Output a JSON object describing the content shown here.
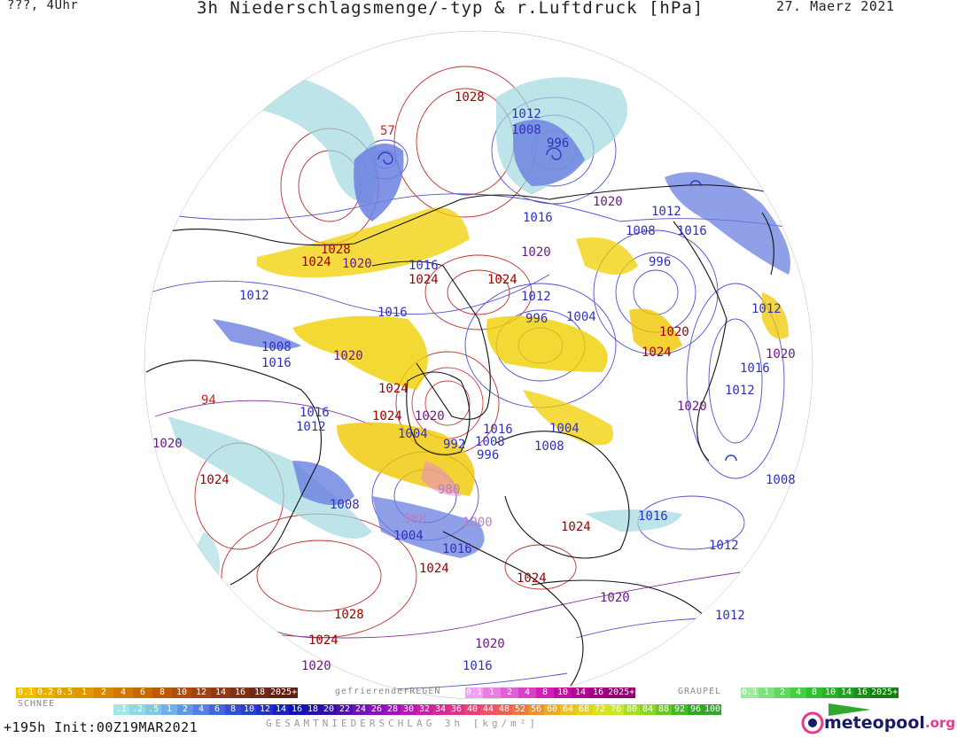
{
  "header": {
    "left": "???, 4Uhr",
    "title": "3h Niederschlagsmenge/-typ & r.Luftdruck [hPa]",
    "date": "27. Maerz 2021"
  },
  "pressure_labels": [
    {
      "text": "1028",
      "kind": "high"
    },
    {
      "text": "1012",
      "kind": "low"
    },
    {
      "text": "1008",
      "kind": "low"
    },
    {
      "text": "996",
      "kind": "low"
    },
    {
      "text": "1020",
      "kind": "mid"
    },
    {
      "text": "1016",
      "kind": "low"
    },
    {
      "text": "1012",
      "kind": "low"
    },
    {
      "text": "1008",
      "kind": "low"
    },
    {
      "text": "1016",
      "kind": "low"
    },
    {
      "text": "1028",
      "kind": "high"
    },
    {
      "text": "1024",
      "kind": "high"
    },
    {
      "text": "1020",
      "kind": "mid"
    },
    {
      "text": "1016",
      "kind": "low"
    },
    {
      "text": "1024",
      "kind": "high"
    },
    {
      "text": "1024",
      "kind": "high"
    },
    {
      "text": "1020",
      "kind": "mid"
    },
    {
      "text": "1012",
      "kind": "low"
    },
    {
      "text": "996",
      "kind": "low"
    },
    {
      "text": "1012",
      "kind": "low"
    },
    {
      "text": "1016",
      "kind": "low"
    },
    {
      "text": "1008",
      "kind": "low"
    },
    {
      "text": "1016",
      "kind": "low"
    },
    {
      "text": "1020",
      "kind": "mid"
    },
    {
      "text": "1024",
      "kind": "high"
    },
    {
      "text": "996",
      "kind": "low"
    },
    {
      "text": "1004",
      "kind": "low"
    },
    {
      "text": "1020",
      "kind": "high"
    },
    {
      "text": "1024",
      "kind": "high"
    },
    {
      "text": "1012",
      "kind": "low"
    },
    {
      "text": "1020",
      "kind": "mid"
    },
    {
      "text": "1016",
      "kind": "low"
    },
    {
      "text": "1012",
      "kind": "low"
    },
    {
      "text": "1020",
      "kind": "mid"
    },
    {
      "text": "1024",
      "kind": "high"
    },
    {
      "text": "1020",
      "kind": "mid"
    },
    {
      "text": "1016",
      "kind": "low"
    },
    {
      "text": "1012",
      "kind": "low"
    },
    {
      "text": "1004",
      "kind": "low"
    },
    {
      "text": "992",
      "kind": "low"
    },
    {
      "text": "1008",
      "kind": "low"
    },
    {
      "text": "996",
      "kind": "low"
    },
    {
      "text": "1016",
      "kind": "low"
    },
    {
      "text": "1008",
      "kind": "low"
    },
    {
      "text": "1004",
      "kind": "low"
    },
    {
      "text": "1020",
      "kind": "mid"
    },
    {
      "text": "1024",
      "kind": "high"
    },
    {
      "text": "1008",
      "kind": "low"
    },
    {
      "text": "980",
      "kind": "pale"
    },
    {
      "text": "988",
      "kind": "pale"
    },
    {
      "text": "1000",
      "kind": "pale"
    },
    {
      "text": "1004",
      "kind": "low"
    },
    {
      "text": "1016",
      "kind": "low"
    },
    {
      "text": "1024",
      "kind": "high"
    },
    {
      "text": "1016",
      "kind": "low"
    },
    {
      "text": "1024",
      "kind": "high"
    },
    {
      "text": "1012",
      "kind": "low"
    },
    {
      "text": "1008",
      "kind": "low"
    },
    {
      "text": "1024",
      "kind": "high"
    },
    {
      "text": "1020",
      "kind": "mid"
    },
    {
      "text": "1012",
      "kind": "low"
    },
    {
      "text": "1028",
      "kind": "high"
    },
    {
      "text": "1024",
      "kind": "high"
    },
    {
      "text": "1020",
      "kind": "mid"
    },
    {
      "text": "1020",
      "kind": "mid"
    },
    {
      "text": "1016",
      "kind": "low"
    }
  ],
  "small_marks": [
    "57",
    "94"
  ],
  "legend": {
    "snow": {
      "label": "SCHNEE",
      "items": [
        "0.1",
        "0.2",
        "0.5",
        "1",
        "2",
        "4",
        "6",
        "8",
        "10",
        "12",
        "14",
        "16",
        "18",
        "2025+"
      ],
      "colors": [
        "#f0c000",
        "#e8b000",
        "#e0a000",
        "#e09800",
        "#d88800",
        "#d07800",
        "#c86800",
        "#c05800",
        "#b04e10",
        "#a04418",
        "#903a18",
        "#803018",
        "#702818",
        "#602010"
      ]
    },
    "freezing_rain": {
      "label": "gefrierenderREGEN",
      "items": [
        "0.1",
        "1",
        "2",
        "4",
        "8",
        "10",
        "14",
        "16",
        "2025+"
      ],
      "colors": [
        "#f0a0f0",
        "#e880e0",
        "#e060d8",
        "#d840c8",
        "#d020b8",
        "#c010a0",
        "#b00890",
        "#a00480",
        "#900070"
      ]
    },
    "graupel": {
      "label": "GRAUPEL",
      "items": [
        "0.1",
        "1",
        "2",
        "4",
        "8",
        "10",
        "14",
        "16",
        "2025+"
      ],
      "colors": [
        "#a0e8a0",
        "#80e080",
        "#60d860",
        "#40d040",
        "#30c030",
        "#28b028",
        "#20a020",
        "#189018",
        "#108010"
      ]
    },
    "total": {
      "items": [
        ".1",
        ".2",
        ".5",
        "1",
        "2",
        "4",
        "6",
        "8",
        "10",
        "12",
        "14",
        "16",
        "18",
        "20",
        "22",
        "24",
        "26",
        "28",
        "30",
        "32",
        "34",
        "36",
        "40",
        "44",
        "48",
        "52",
        "56",
        "60",
        "64",
        "68",
        "72",
        "76",
        "80",
        "84",
        "88",
        "92",
        "96",
        "100"
      ],
      "colors": [
        "#a0e8e8",
        "#90d8e8",
        "#80c8e8",
        "#70b0e8",
        "#6098e8",
        "#5080e8",
        "#4068e0",
        "#3050d8",
        "#2840d0",
        "#2030c8",
        "#1820c0",
        "#1010b8",
        "#2010b0",
        "#3010a8",
        "#5010b0",
        "#7010b8",
        "#8810c0",
        "#a010c0",
        "#b818b8",
        "#c820a8",
        "#d82898",
        "#e03088",
        "#e84078",
        "#f05068",
        "#f06050",
        "#f07840",
        "#f09030",
        "#f0a828",
        "#f0c020",
        "#e8d020",
        "#d8e020",
        "#c8e820",
        "#a8e020",
        "#88d820",
        "#68c820",
        "#48b820",
        "#30a820",
        "#30a830"
      ]
    },
    "total_label": "GESAMTNIEDERSCHLAG 3h [kg/m²]"
  },
  "footer": {
    "init": "+195h Init:00Z19MAR2021",
    "logo_main": "meteopool",
    "logo_suffix": ".org"
  },
  "colors": {
    "high": "#a00000",
    "mid": "#6a1a8a",
    "low": "#3030c0",
    "pale": "#b080c0",
    "isobar_high": "#c03030",
    "isobar_low": "#5050d0",
    "snow": "#f0d000",
    "rain_light": "#a0d8e0",
    "rain_mid": "#6070e0"
  }
}
